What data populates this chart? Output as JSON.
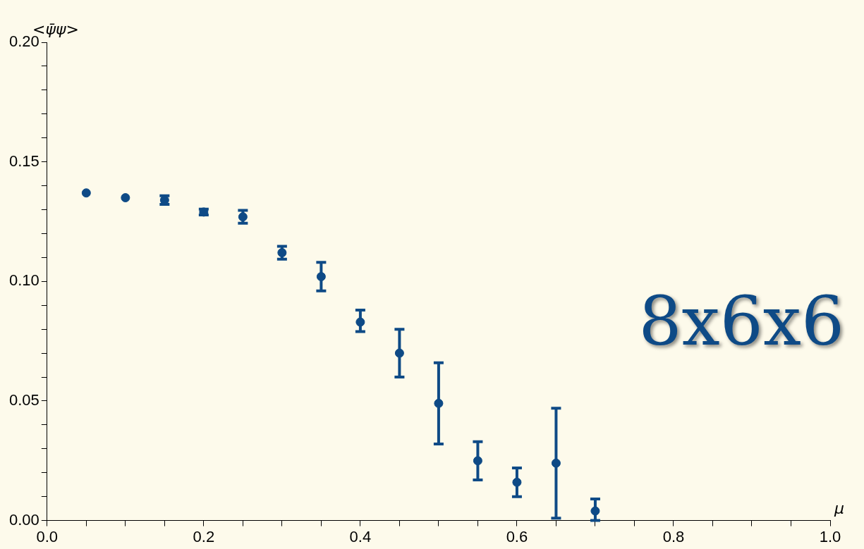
{
  "chart_data": {
    "type": "scatter",
    "xlabel": "μ",
    "ylabel": "<ψ̄ψ>",
    "annotations": [
      "8x6x6"
    ],
    "x": [
      0.05,
      0.1,
      0.15,
      0.2,
      0.25,
      0.3,
      0.35,
      0.4,
      0.45,
      0.5,
      0.55,
      0.6,
      0.65,
      0.7
    ],
    "series": [
      {
        "color": "#0e4a86",
        "values": [
          0.137,
          0.135,
          0.134,
          0.129,
          0.127,
          0.112,
          0.102,
          0.083,
          0.07,
          0.049,
          0.025,
          0.016,
          0.024,
          0.004
        ],
        "errors": [
          null,
          null,
          0.0018,
          0.0012,
          0.0027,
          0.0027,
          [
            0.096,
            0.108
          ],
          [
            0.079,
            0.088
          ],
          [
            0.06,
            0.08
          ],
          [
            0.032,
            0.066
          ],
          [
            0.017,
            0.033
          ],
          [
            0.01,
            0.022
          ],
          [
            0.001,
            0.047
          ],
          [
            0.0,
            0.009
          ]
        ]
      }
    ],
    "xlim": [
      0,
      1
    ],
    "ylim": [
      0,
      0.2
    ],
    "xticks": [
      {
        "value": 0,
        "label": "0.0"
      },
      {
        "value": 0.05,
        "label": null
      },
      {
        "value": 0.1,
        "label": null
      },
      {
        "value": 0.15,
        "label": null
      },
      {
        "value": 0.2,
        "label": "0.2"
      },
      {
        "value": 0.25,
        "label": null
      },
      {
        "value": 0.3,
        "label": null
      },
      {
        "value": 0.35,
        "label": null
      },
      {
        "value": 0.4,
        "label": "0.4"
      },
      {
        "value": 0.45,
        "label": null
      },
      {
        "value": 0.5,
        "label": null
      },
      {
        "value": 0.55,
        "label": null
      },
      {
        "value": 0.6,
        "label": "0.6"
      },
      {
        "value": 0.65,
        "label": null
      },
      {
        "value": 0.7,
        "label": null
      },
      {
        "value": 0.75,
        "label": null
      },
      {
        "value": 0.8,
        "label": "0.8"
      },
      {
        "value": 0.85,
        "label": null
      },
      {
        "value": 0.9,
        "label": null
      },
      {
        "value": 0.95,
        "label": null
      },
      {
        "value": 1,
        "label": "1.0"
      }
    ],
    "yticks": [
      {
        "value": 0,
        "label": "0.00"
      },
      {
        "value": 0.01,
        "label": null
      },
      {
        "value": 0.02,
        "label": null
      },
      {
        "value": 0.03,
        "label": null
      },
      {
        "value": 0.04,
        "label": null
      },
      {
        "value": 0.05,
        "label": "0.05"
      },
      {
        "value": 0.06,
        "label": null
      },
      {
        "value": 0.07,
        "label": null
      },
      {
        "value": 0.08,
        "label": null
      },
      {
        "value": 0.09,
        "label": null
      },
      {
        "value": 0.1,
        "label": "0.10"
      },
      {
        "value": 0.11,
        "label": null
      },
      {
        "value": 0.12,
        "label": null
      },
      {
        "value": 0.13,
        "label": null
      },
      {
        "value": 0.14,
        "label": null
      },
      {
        "value": 0.15,
        "label": "0.15"
      },
      {
        "value": 0.16,
        "label": null
      },
      {
        "value": 0.17,
        "label": null
      },
      {
        "value": 0.18,
        "label": null
      },
      {
        "value": 0.19,
        "label": null
      },
      {
        "value": 0.2,
        "label": "0.20"
      }
    ],
    "grid": false,
    "legend": false,
    "marker": "circle"
  }
}
